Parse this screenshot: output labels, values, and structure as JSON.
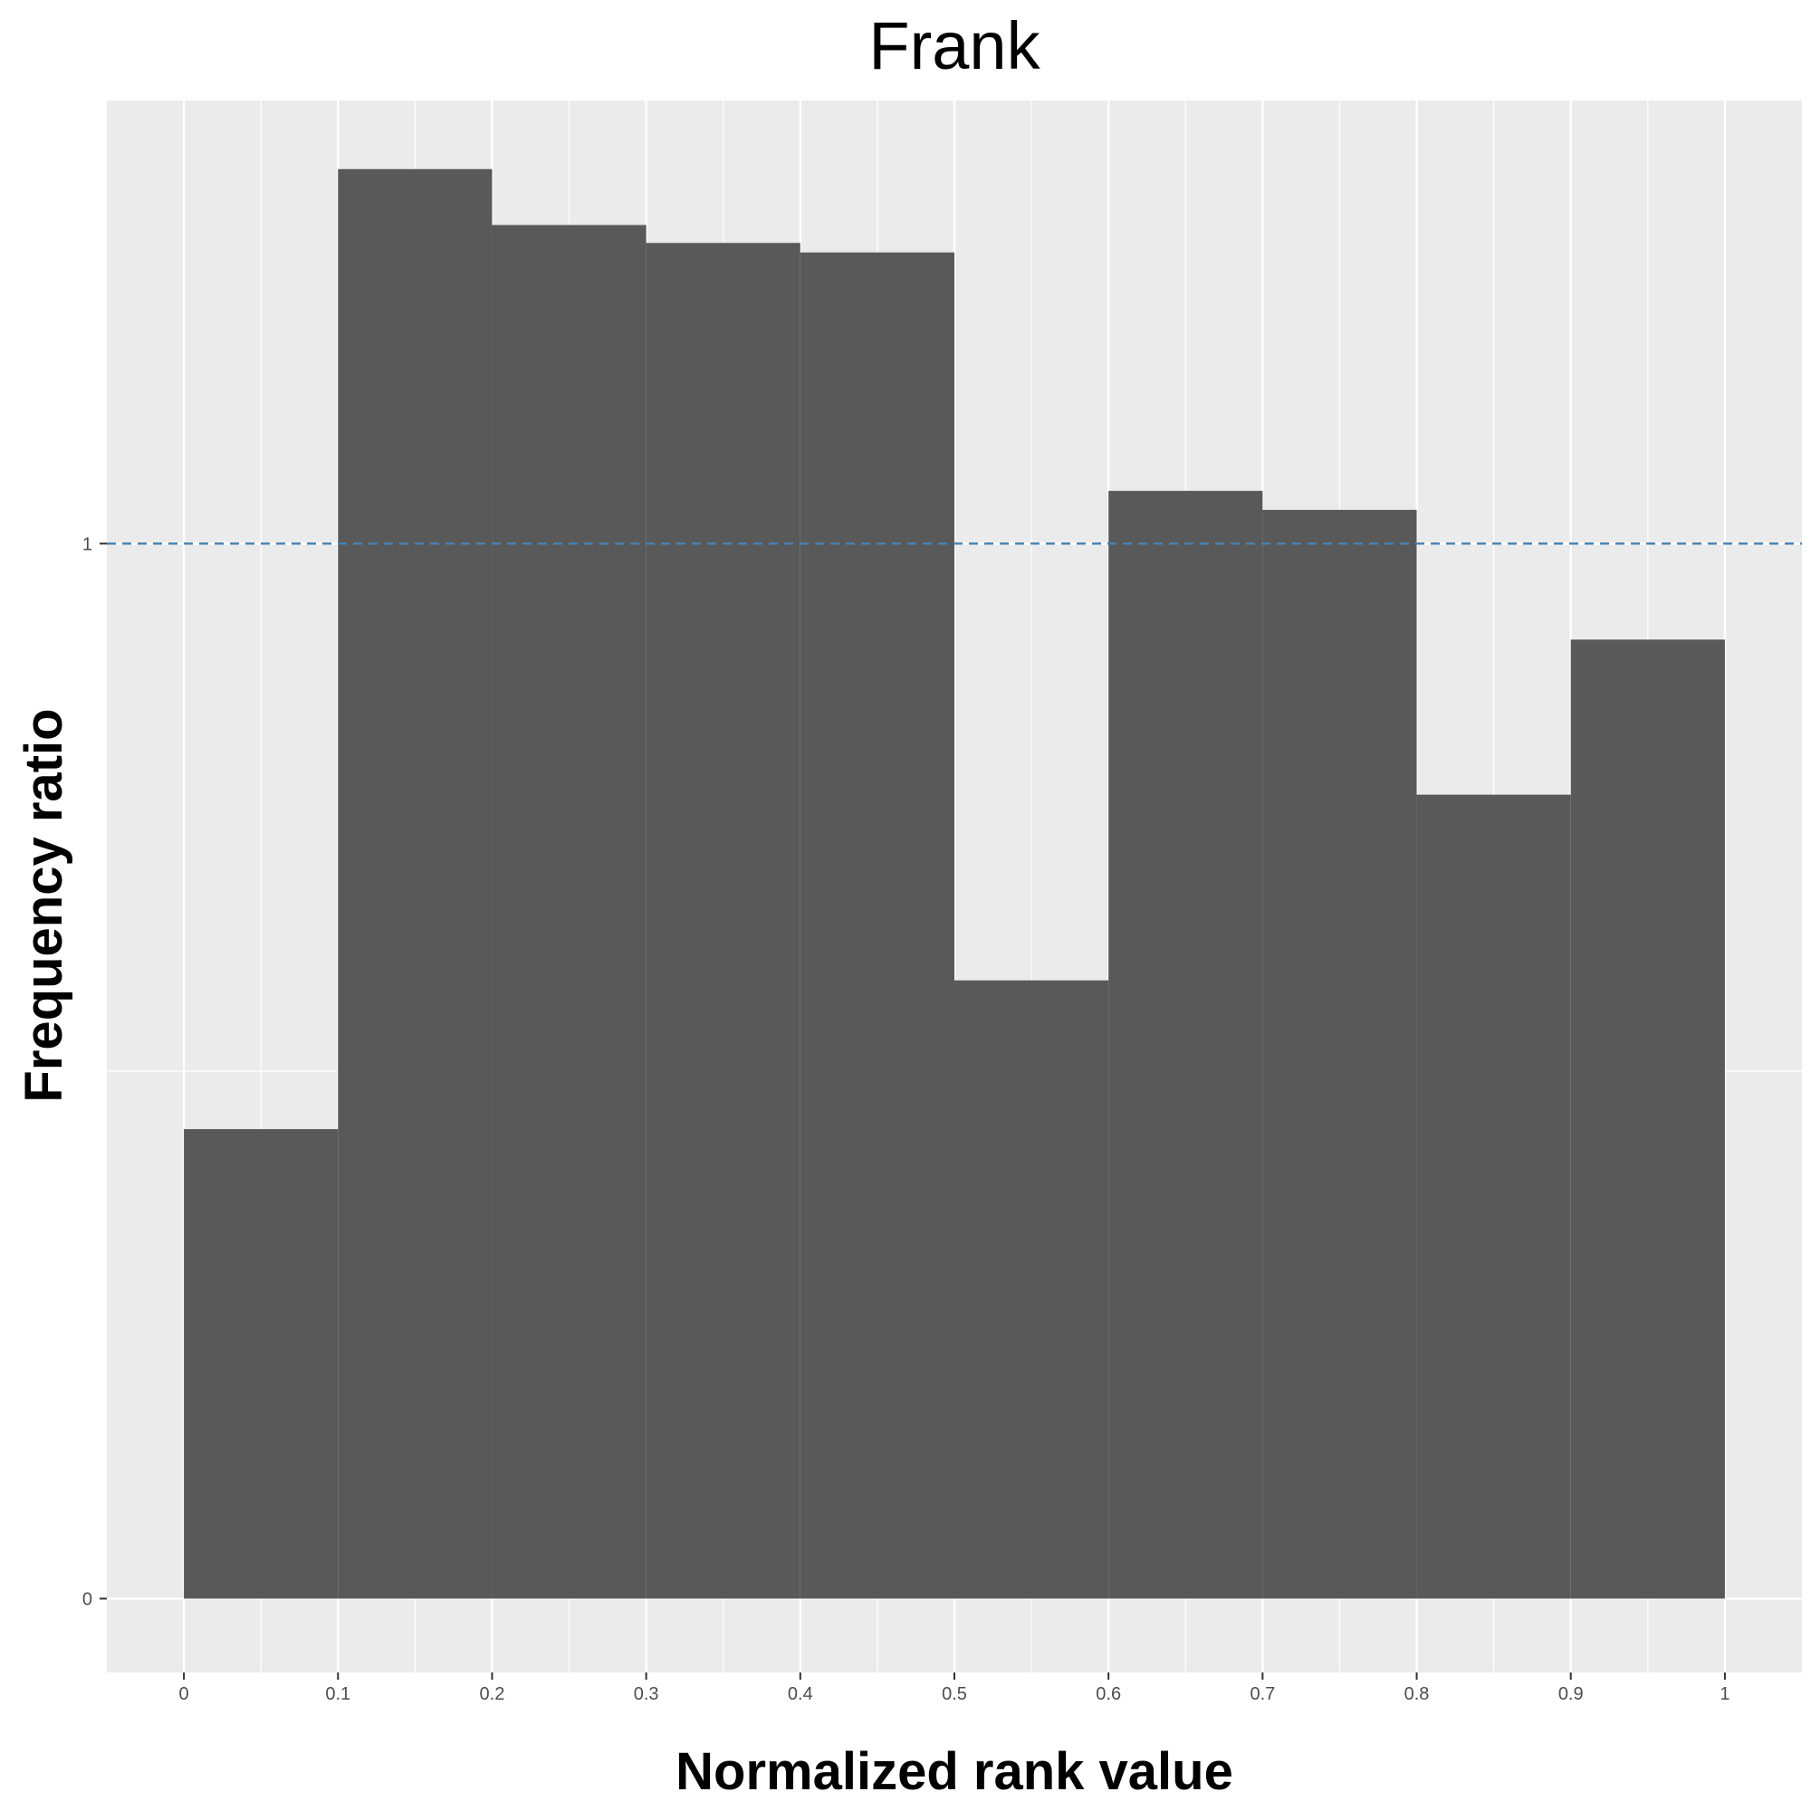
{
  "chart_data": {
    "type": "bar",
    "title": "Frank",
    "xlabel": "Normalized rank value",
    "ylabel": "Frequency ratio",
    "bins": [
      {
        "x0": 0.0,
        "x1": 0.1,
        "value": 0.445
      },
      {
        "x0": 0.1,
        "x1": 0.2,
        "value": 1.355
      },
      {
        "x0": 0.2,
        "x1": 0.3,
        "value": 1.302
      },
      {
        "x0": 0.3,
        "x1": 0.4,
        "value": 1.285
      },
      {
        "x0": 0.4,
        "x1": 0.5,
        "value": 1.276
      },
      {
        "x0": 0.5,
        "x1": 0.6,
        "value": 0.586
      },
      {
        "x0": 0.6,
        "x1": 0.7,
        "value": 1.05
      },
      {
        "x0": 0.7,
        "x1": 0.8,
        "value": 1.032
      },
      {
        "x0": 0.8,
        "x1": 0.9,
        "value": 0.762
      },
      {
        "x0": 0.9,
        "x1": 1.0,
        "value": 0.909
      }
    ],
    "xlim": [
      -0.05,
      1.05
    ],
    "ylim": [
      -0.07,
      1.42
    ],
    "x_ticks": [
      {
        "value": 0,
        "label": "0"
      },
      {
        "value": 0.1,
        "label": "0.1"
      },
      {
        "value": 0.2,
        "label": "0.2"
      },
      {
        "value": 0.3,
        "label": "0.3"
      },
      {
        "value": 0.4,
        "label": "0.4"
      },
      {
        "value": 0.5,
        "label": "0.5"
      },
      {
        "value": 0.6,
        "label": "0.6"
      },
      {
        "value": 0.7,
        "label": "0.7"
      },
      {
        "value": 0.8,
        "label": "0.8"
      },
      {
        "value": 0.9,
        "label": "0.9"
      },
      {
        "value": 1,
        "label": "1"
      }
    ],
    "x_minor_gridlines": [
      0.05,
      0.15,
      0.25,
      0.35,
      0.45,
      0.55,
      0.65,
      0.75,
      0.85,
      0.95
    ],
    "y_ticks": [
      {
        "value": 0,
        "label": "0"
      },
      {
        "value": 1,
        "label": "1"
      }
    ],
    "y_minor_gridlines": [
      0.5
    ],
    "reference_line": {
      "y": 1,
      "style": "dashed",
      "color": "#4682b4"
    },
    "grid": true,
    "legend": "none",
    "colors": {
      "bar_fill": "#595959",
      "panel_background": "#ebebeb",
      "gridline": "#ffffff"
    }
  }
}
